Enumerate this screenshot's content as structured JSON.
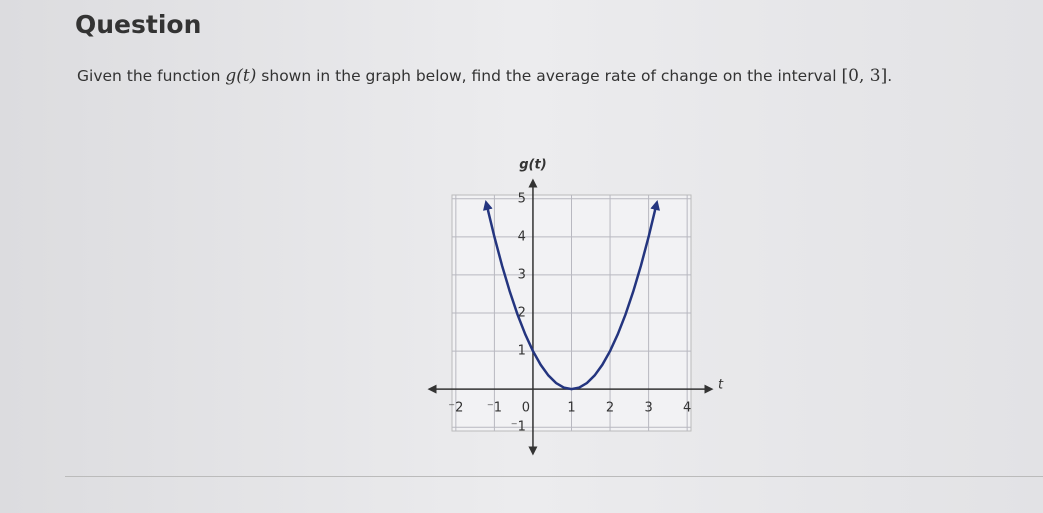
{
  "header": {
    "title": "Question"
  },
  "question": {
    "text_before": "Given the function ",
    "function": "g(t)",
    "text_after": " shown in the graph below, find the average rate of change on the interval ",
    "interval": "[0, 3]",
    "end": "."
  },
  "chart_data": {
    "type": "line",
    "y_label": "g(t)",
    "x_label": "t",
    "x": [
      -1.2,
      -1,
      -0.8,
      -0.6,
      -0.4,
      -0.2,
      0,
      0.2,
      0.4,
      0.6,
      0.8,
      1,
      1.2,
      1.4,
      1.6,
      1.8,
      2,
      2.2,
      2.4,
      2.6,
      2.8,
      3,
      3.2
    ],
    "values": [
      4.84,
      4,
      3.24,
      2.56,
      1.96,
      1.44,
      1,
      0.64,
      0.36,
      0.16,
      0.04,
      0,
      0.04,
      0.16,
      0.36,
      0.64,
      1,
      1.44,
      1.96,
      2.56,
      3.24,
      4,
      4.84
    ],
    "color": "#24357f",
    "xlim": [
      -2.1,
      4.1
    ],
    "ylim": [
      -1.1,
      5.1
    ],
    "xticks": [
      {
        "value": -2,
        "label": "⁻2"
      },
      {
        "value": -1,
        "label": "⁻1"
      },
      0,
      1,
      2,
      3,
      4
    ],
    "yticks": [
      {
        "value": -1,
        "label": "⁻1"
      },
      1,
      2,
      3,
      4,
      5
    ],
    "grid": true
  }
}
